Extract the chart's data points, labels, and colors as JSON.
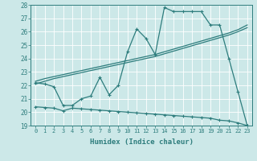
{
  "xlabel": "Humidex (Indice chaleur)",
  "bg_color": "#cce8e8",
  "line_color": "#2e7d7d",
  "x": [
    0,
    1,
    2,
    3,
    4,
    5,
    6,
    7,
    8,
    9,
    10,
    11,
    12,
    13,
    14,
    15,
    16,
    17,
    18,
    19,
    20,
    21,
    22,
    23
  ],
  "y_main": [
    22.2,
    22.1,
    21.9,
    20.5,
    20.5,
    21.0,
    21.2,
    22.6,
    21.3,
    22.0,
    24.5,
    26.2,
    25.5,
    24.3,
    27.8,
    27.5,
    27.5,
    27.5,
    27.5,
    26.5,
    26.5,
    24.0,
    21.5,
    19.0
  ],
  "y_trend1": [
    22.1,
    22.3,
    22.5,
    22.65,
    22.8,
    22.95,
    23.1,
    23.25,
    23.4,
    23.55,
    23.7,
    23.85,
    24.0,
    24.15,
    24.35,
    24.55,
    24.75,
    24.95,
    25.15,
    25.35,
    25.55,
    25.75,
    26.0,
    26.3
  ],
  "y_trend2": [
    22.3,
    22.5,
    22.65,
    22.8,
    22.95,
    23.1,
    23.25,
    23.4,
    23.55,
    23.7,
    23.85,
    24.0,
    24.15,
    24.3,
    24.5,
    24.7,
    24.9,
    25.1,
    25.3,
    25.5,
    25.7,
    25.9,
    26.15,
    26.5
  ],
  "y_bottom": [
    20.4,
    20.35,
    20.3,
    20.1,
    20.3,
    20.25,
    20.2,
    20.15,
    20.1,
    20.05,
    20.0,
    19.95,
    19.9,
    19.85,
    19.8,
    19.75,
    19.7,
    19.65,
    19.6,
    19.55,
    19.4,
    19.35,
    19.2,
    19.0
  ],
  "ylim": [
    19,
    28
  ],
  "xlim": [
    -0.5,
    23.5
  ],
  "yticks": [
    19,
    20,
    21,
    22,
    23,
    24,
    25,
    26,
    27,
    28
  ],
  "xticks": [
    0,
    1,
    2,
    3,
    4,
    5,
    6,
    7,
    8,
    9,
    10,
    11,
    12,
    13,
    14,
    15,
    16,
    17,
    18,
    19,
    20,
    21,
    22,
    23
  ]
}
